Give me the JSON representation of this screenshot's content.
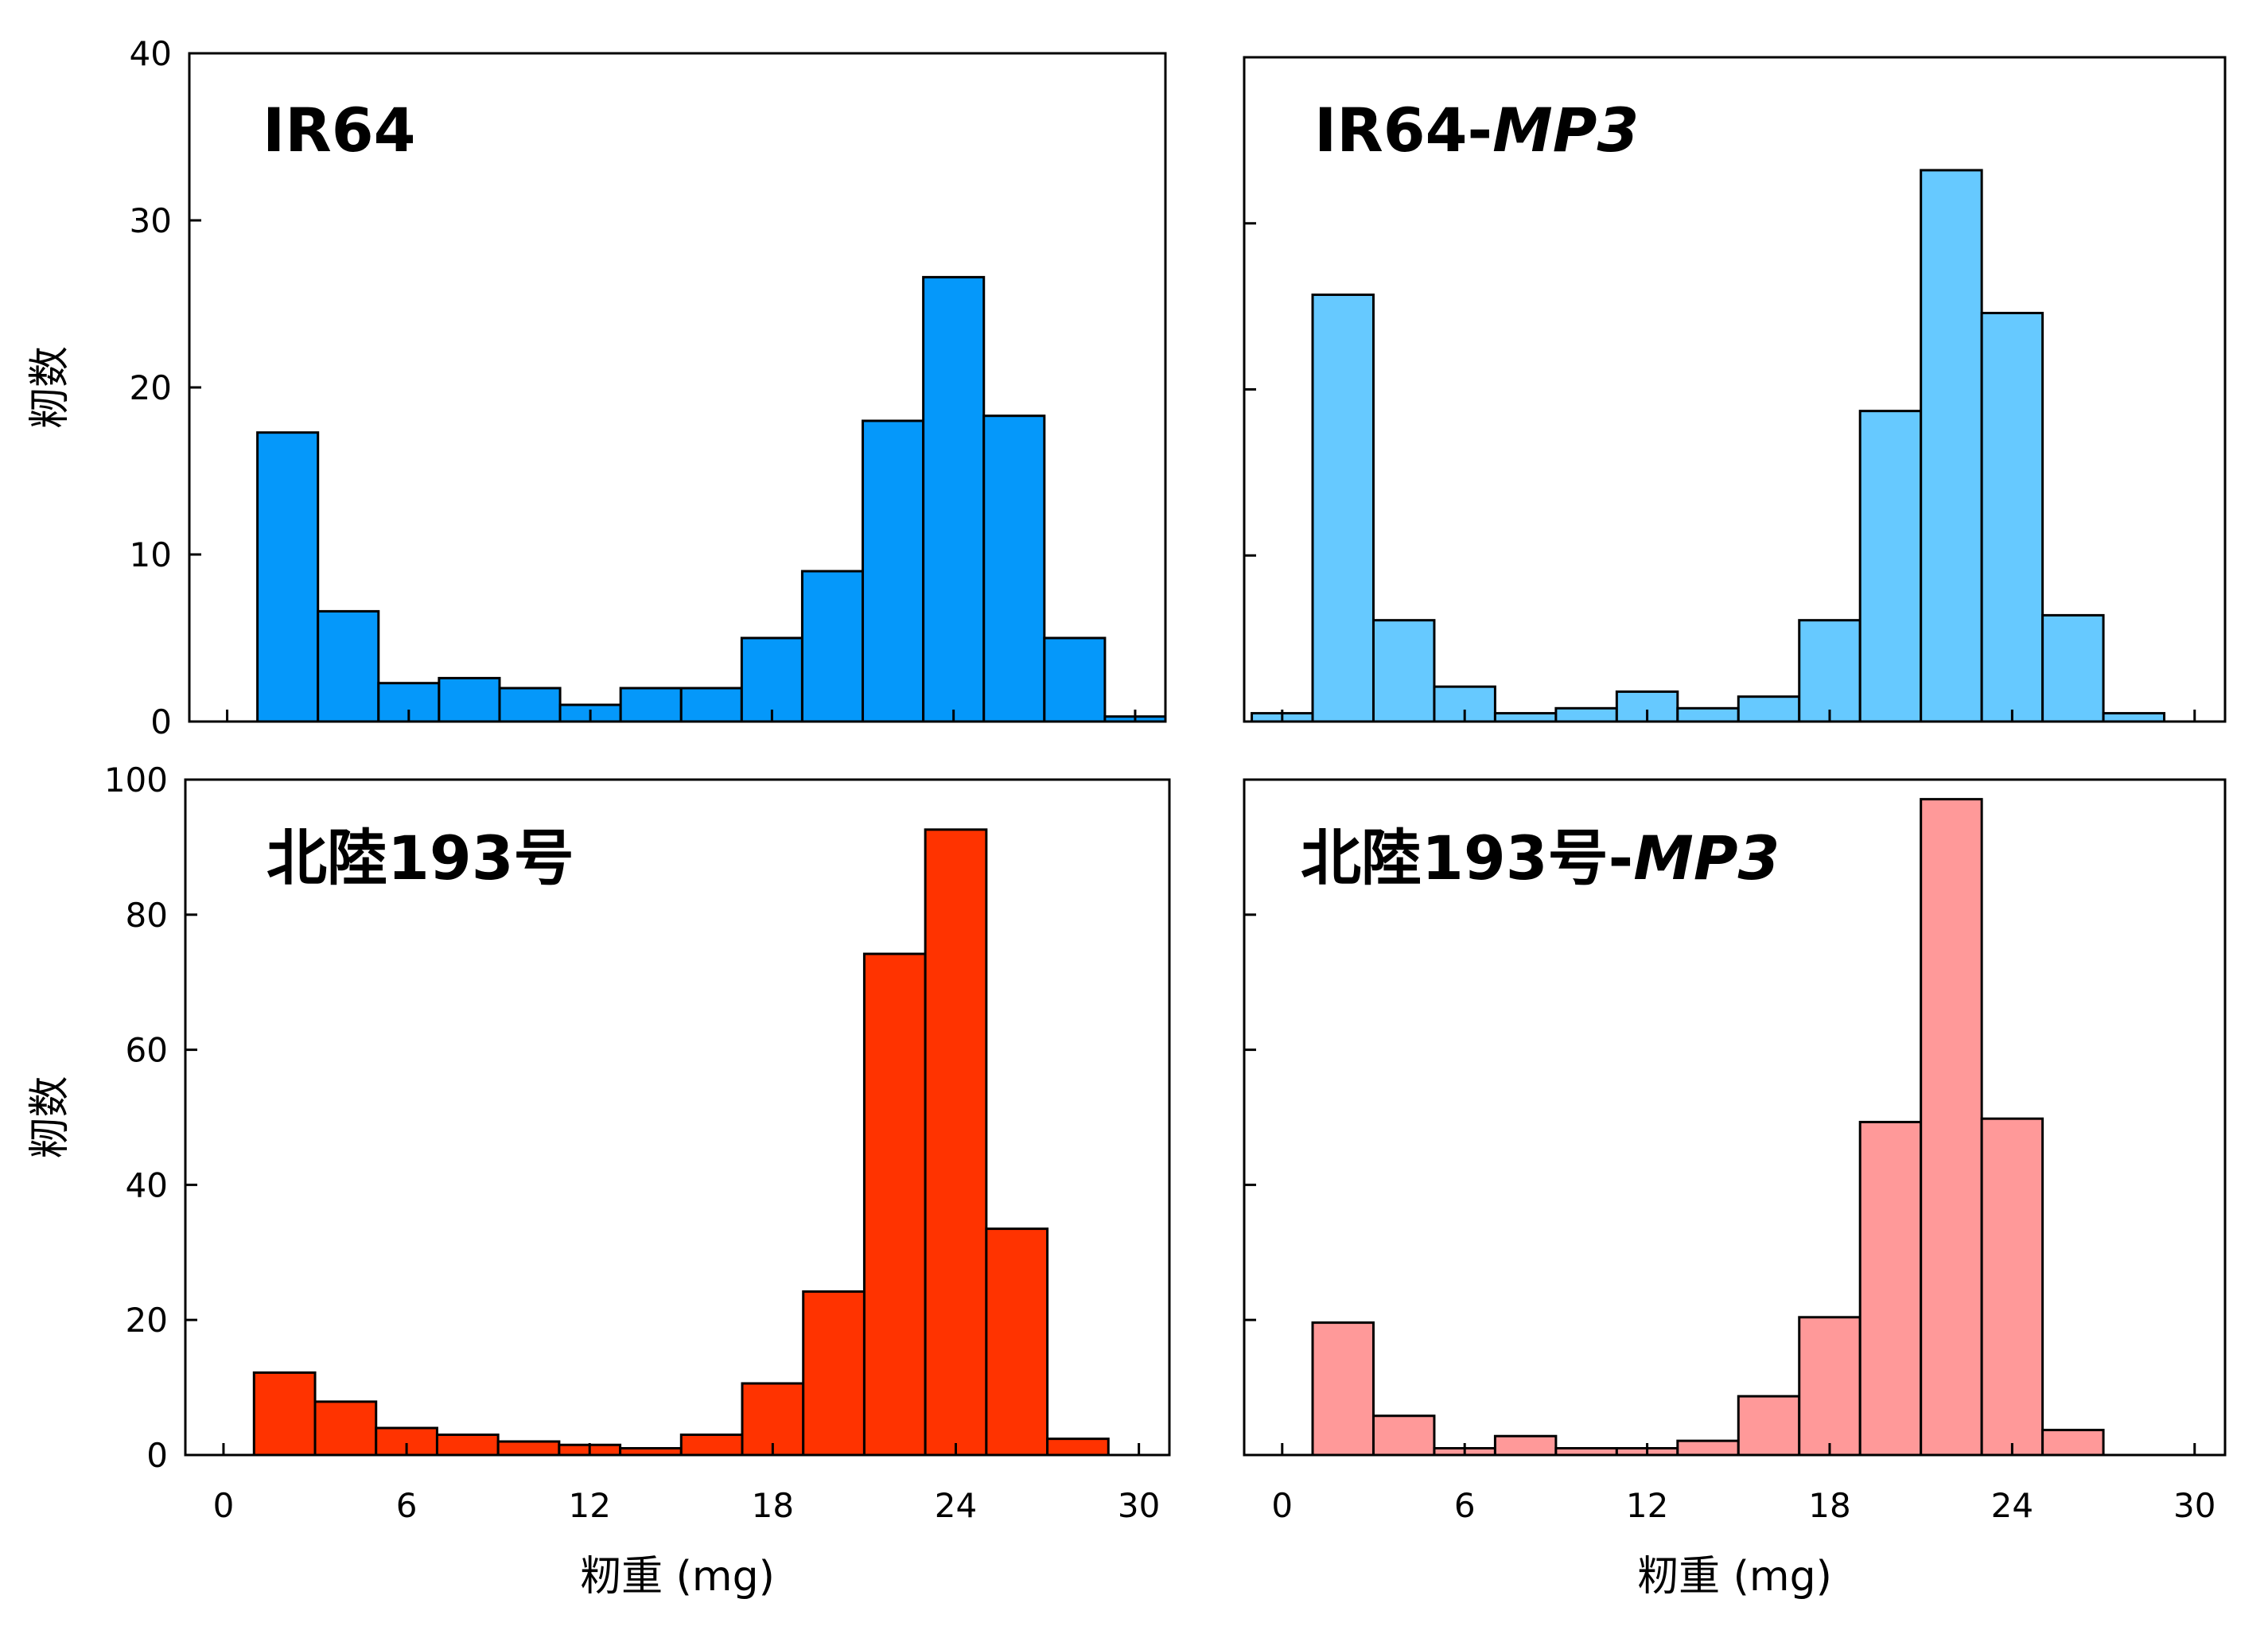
{
  "chart_data": [
    {
      "type": "bar",
      "title": "IR64",
      "title_italic": "",
      "color": "#0598FA",
      "xlabel": "",
      "ylabel": "籾数",
      "xlim": [
        0,
        30
      ],
      "ylim": [
        0,
        40
      ],
      "xticks": [],
      "yticks": [
        0,
        10,
        20,
        30,
        40
      ],
      "bin_width": 2,
      "bins": [
        {
          "x0": 1,
          "value": 17.3
        },
        {
          "x0": 3,
          "value": 6.6
        },
        {
          "x0": 5,
          "value": 2.3
        },
        {
          "x0": 7,
          "value": 2.6
        },
        {
          "x0": 9,
          "value": 2.0
        },
        {
          "x0": 11,
          "value": 1.0
        },
        {
          "x0": 13,
          "value": 2.0
        },
        {
          "x0": 15,
          "value": 2.0
        },
        {
          "x0": 17,
          "value": 5.0
        },
        {
          "x0": 19,
          "value": 9.0
        },
        {
          "x0": 21,
          "value": 18.0
        },
        {
          "x0": 23,
          "value": 26.6
        },
        {
          "x0": 25,
          "value": 18.3
        },
        {
          "x0": 27,
          "value": 5.0
        },
        {
          "x0": 29,
          "value": 0.3
        }
      ]
    },
    {
      "type": "bar",
      "title": "IR64-",
      "title_italic": "MP3",
      "color": "#66C9FF",
      "xlabel": "",
      "ylabel": "",
      "xlim": [
        0,
        30
      ],
      "ylim": [
        0,
        40
      ],
      "xticks": [],
      "yticks": [],
      "bin_width": 2,
      "bins": [
        {
          "x0": -1,
          "value": 0.5
        },
        {
          "x0": 1,
          "value": 25.7
        },
        {
          "x0": 3,
          "value": 6.1
        },
        {
          "x0": 5,
          "value": 2.1
        },
        {
          "x0": 7,
          "value": 0.5
        },
        {
          "x0": 9,
          "value": 0.8
        },
        {
          "x0": 11,
          "value": 1.8
        },
        {
          "x0": 13,
          "value": 0.8
        },
        {
          "x0": 15,
          "value": 1.5
        },
        {
          "x0": 17,
          "value": 6.1
        },
        {
          "x0": 19,
          "value": 18.7
        },
        {
          "x0": 21,
          "value": 33.2
        },
        {
          "x0": 23,
          "value": 24.6
        },
        {
          "x0": 25,
          "value": 6.4
        },
        {
          "x0": 27,
          "value": 0.5
        }
      ]
    },
    {
      "type": "bar",
      "title": "北陸193号",
      "title_italic": "",
      "color": "#FF3300",
      "xlabel": "籾重 (mg)",
      "ylabel": "籾数",
      "xlim": [
        0,
        30
      ],
      "ylim": [
        0,
        100
      ],
      "xticks": [
        0,
        6,
        12,
        18,
        24,
        30
      ],
      "yticks": [
        0,
        20,
        40,
        60,
        80,
        100
      ],
      "bin_width": 2,
      "bins": [
        {
          "x0": 1,
          "value": 12.2
        },
        {
          "x0": 3,
          "value": 7.9
        },
        {
          "x0": 5,
          "value": 4.0
        },
        {
          "x0": 7,
          "value": 3.0
        },
        {
          "x0": 9,
          "value": 2.0
        },
        {
          "x0": 11,
          "value": 1.5
        },
        {
          "x0": 13,
          "value": 1.0
        },
        {
          "x0": 15,
          "value": 3.0
        },
        {
          "x0": 17,
          "value": 10.6
        },
        {
          "x0": 19,
          "value": 24.2
        },
        {
          "x0": 21,
          "value": 74.2
        },
        {
          "x0": 23,
          "value": 92.6
        },
        {
          "x0": 25,
          "value": 33.5
        },
        {
          "x0": 27,
          "value": 2.4
        }
      ]
    },
    {
      "type": "bar",
      "title": "北陸193号-",
      "title_italic": "MP3",
      "color": "#FF9999",
      "xlabel": "籾重 (mg)",
      "ylabel": "",
      "xlim": [
        0,
        30
      ],
      "ylim": [
        0,
        100
      ],
      "xticks": [
        0,
        6,
        12,
        18,
        24,
        30
      ],
      "yticks": [],
      "bin_width": 2,
      "bins": [
        {
          "x0": 1,
          "value": 19.6
        },
        {
          "x0": 3,
          "value": 5.8
        },
        {
          "x0": 5,
          "value": 1.0
        },
        {
          "x0": 7,
          "value": 2.8
        },
        {
          "x0": 9,
          "value": 1.0
        },
        {
          "x0": 11,
          "value": 1.0
        },
        {
          "x0": 13,
          "value": 2.1
        },
        {
          "x0": 15,
          "value": 8.7
        },
        {
          "x0": 17,
          "value": 20.4
        },
        {
          "x0": 19,
          "value": 49.3
        },
        {
          "x0": 21,
          "value": 97.1
        },
        {
          "x0": 23,
          "value": 49.8
        },
        {
          "x0": 25,
          "value": 3.7
        }
      ]
    }
  ]
}
